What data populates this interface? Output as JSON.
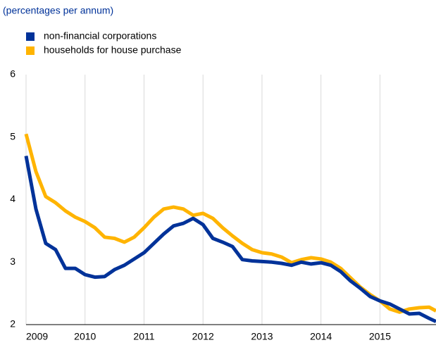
{
  "chart_data": {
    "type": "line",
    "subtitle": "(percentages per annum)",
    "x": [
      2009,
      2009.167,
      2009.333,
      2009.5,
      2009.667,
      2009.833,
      2010,
      2010.167,
      2010.333,
      2010.5,
      2010.667,
      2010.833,
      2011,
      2011.167,
      2011.333,
      2011.5,
      2011.667,
      2011.833,
      2012,
      2012.167,
      2012.333,
      2012.5,
      2012.667,
      2012.833,
      2013,
      2013.167,
      2013.333,
      2013.5,
      2013.667,
      2013.833,
      2014,
      2014.167,
      2014.333,
      2014.5,
      2014.667,
      2014.833,
      2015,
      2015.167,
      2015.333,
      2015.5,
      2015.667,
      2015.833,
      2015.95
    ],
    "series": [
      {
        "name": "non-financial corporations",
        "color": "#003299",
        "values": [
          4.7,
          3.85,
          3.3,
          3.2,
          2.9,
          2.9,
          2.8,
          2.76,
          2.77,
          2.88,
          2.95,
          3.05,
          3.15,
          3.3,
          3.45,
          3.58,
          3.62,
          3.7,
          3.6,
          3.38,
          3.32,
          3.25,
          3.04,
          3.02,
          3.01,
          3.0,
          2.98,
          2.95,
          3.0,
          2.97,
          2.99,
          2.95,
          2.85,
          2.7,
          2.58,
          2.45,
          2.38,
          2.33,
          2.25,
          2.17,
          2.18,
          2.1,
          2.05
        ]
      },
      {
        "name": "households for house purchase",
        "color": "#ffb400",
        "values": [
          5.05,
          4.45,
          4.05,
          3.95,
          3.82,
          3.72,
          3.65,
          3.55,
          3.4,
          3.38,
          3.32,
          3.4,
          3.55,
          3.72,
          3.85,
          3.88,
          3.85,
          3.75,
          3.78,
          3.7,
          3.55,
          3.42,
          3.3,
          3.2,
          3.15,
          3.13,
          3.08,
          2.99,
          3.04,
          3.07,
          3.05,
          3.0,
          2.9,
          2.75,
          2.6,
          2.48,
          2.38,
          2.25,
          2.2,
          2.25,
          2.27,
          2.28,
          2.22
        ]
      }
    ],
    "xlim": [
      2009,
      2015.95
    ],
    "xticks": [
      2009,
      2010,
      2011,
      2012,
      2013,
      2014,
      2015
    ],
    "ylim": [
      2,
      6
    ],
    "yticks": [
      2,
      3,
      4,
      5,
      6
    ],
    "grid": "x"
  }
}
